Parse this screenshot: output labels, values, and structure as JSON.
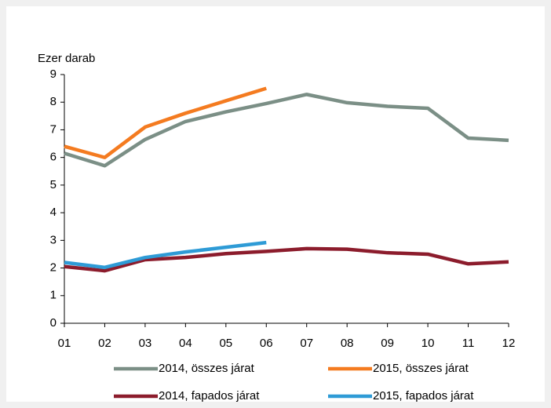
{
  "chart_data": {
    "type": "line",
    "y_axis_label": "Ezer darab",
    "categories": [
      "01",
      "02",
      "03",
      "04",
      "05",
      "06",
      "07",
      "08",
      "09",
      "10",
      "11",
      "12"
    ],
    "series": [
      {
        "name": "2014, összes járat",
        "color": "#7b8f86",
        "values": [
          6.15,
          5.7,
          6.65,
          7.3,
          7.65,
          7.95,
          8.28,
          7.98,
          7.85,
          7.78,
          6.7,
          6.62
        ]
      },
      {
        "name": "2015, összes járat",
        "color": "#f47b20",
        "values": [
          6.4,
          6.0,
          7.1,
          7.6,
          8.05,
          8.5,
          null,
          null,
          null,
          null,
          null,
          null
        ]
      },
      {
        "name": "2014, fapados járat",
        "color": "#8c1c2c",
        "values": [
          2.05,
          1.9,
          2.3,
          2.38,
          2.52,
          2.6,
          2.7,
          2.68,
          2.55,
          2.5,
          2.15,
          2.22
        ]
      },
      {
        "name": "2015, fapados járat",
        "color": "#2e9bd6",
        "values": [
          2.2,
          2.02,
          2.38,
          2.58,
          2.75,
          2.92,
          null,
          null,
          null,
          null,
          null,
          null
        ]
      }
    ],
    "ylim": [
      0,
      9
    ],
    "yticks": [
      0,
      1,
      2,
      3,
      4,
      5,
      6,
      7,
      8,
      9
    ]
  }
}
